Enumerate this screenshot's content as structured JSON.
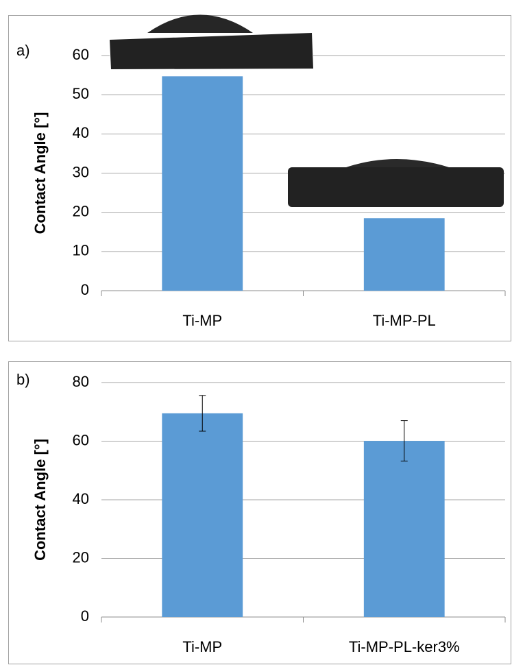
{
  "chart_data": [
    {
      "type": "bar",
      "panel_label": "a)",
      "ylabel": "Contact Angle [°]",
      "categories": [
        "Ti-MP",
        "Ti-MP-PL"
      ],
      "values": [
        54.7,
        18.5
      ],
      "color": "#5b9bd5",
      "ylim": [
        0,
        60
      ],
      "yticks": [
        0,
        10,
        20,
        30,
        40,
        50,
        60
      ],
      "grid": true
    },
    {
      "type": "bar",
      "panel_label": "b)",
      "ylabel": "Contact Angle [°]",
      "categories": [
        "Ti-MP",
        "Ti-MP-PL-ker3%"
      ],
      "values": [
        69.5,
        60.1
      ],
      "errors": [
        6.1,
        6.9
      ],
      "color": "#5b9bd5",
      "ylim": [
        0,
        80
      ],
      "yticks": [
        0,
        20,
        40,
        60,
        80
      ],
      "grid": true
    }
  ]
}
